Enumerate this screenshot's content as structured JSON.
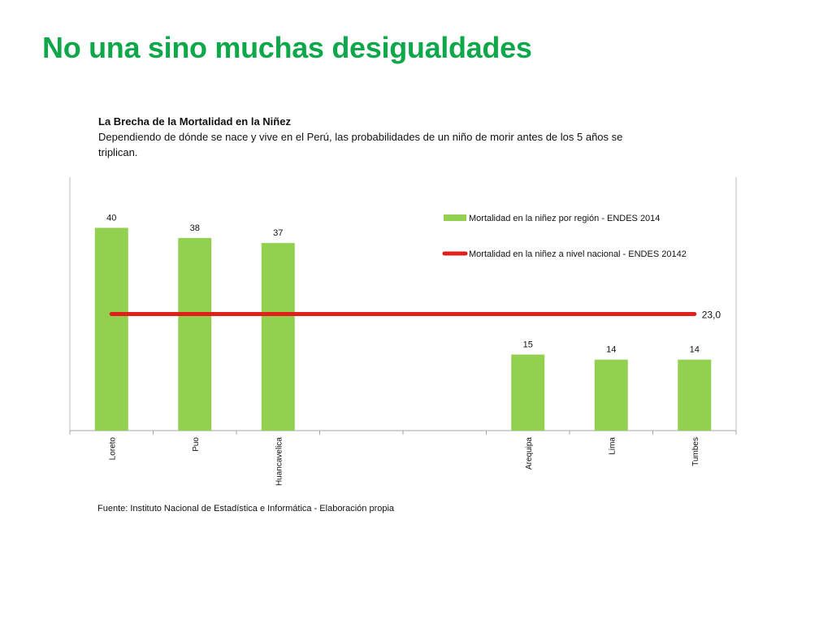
{
  "slide": {
    "title": "No una sino muchas desigualdades",
    "heading": "La Brecha de la Mortalidad en la Niñez",
    "description": "Dependiendo de dónde se nace y vive en el Perú, las probabilidades de  un niño de morir antes de los 5 años se triplican.",
    "source": "Fuente:  Instituto Nacional de Estadística e Informática - Elaboración propia"
  },
  "chart_data": {
    "type": "bar",
    "categories": [
      "Loreto",
      "Puo",
      "Huancavelica",
      "",
      "",
      "Arequipa",
      "Lima",
      "Tumbes"
    ],
    "series": [
      {
        "name": "Mortalidad en la niñez por región - ENDES 2014",
        "type": "bar",
        "color": "#92d050",
        "values": [
          40,
          38,
          37,
          null,
          null,
          15,
          14,
          14
        ],
        "labels": [
          "40",
          "38",
          "37",
          "",
          "",
          "15",
          "14",
          "14"
        ]
      },
      {
        "name": "Mortalidad en la niñez a nivel nacional - ENDES 20142",
        "type": "line",
        "color": "#e0201b",
        "value": 23.0,
        "label": "23,0"
      }
    ],
    "ylim": [
      0,
      50
    ],
    "legend": "top-right",
    "grid": false,
    "title": "",
    "xlabel": "",
    "ylabel": ""
  }
}
